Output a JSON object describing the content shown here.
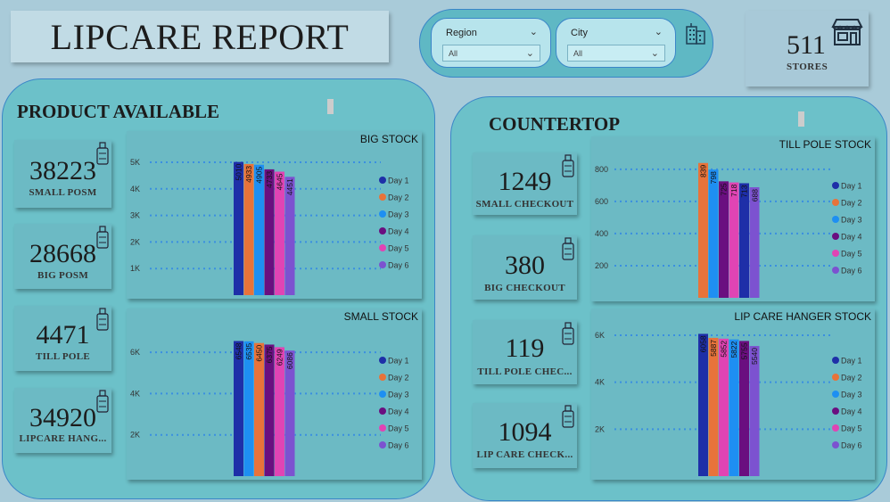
{
  "title": "LIPCARE REPORT",
  "filters": [
    {
      "label": "Region",
      "value": "All"
    },
    {
      "label": "City",
      "value": "All"
    }
  ],
  "stores": {
    "value": "511",
    "label": "STORES"
  },
  "product_available": {
    "title": "PRODUCT AVAILABLE",
    "cards": [
      {
        "value": "38223",
        "label": "SMALL POSM"
      },
      {
        "value": "28668",
        "label": "BIG POSM"
      },
      {
        "value": "4471",
        "label": "TILL POLE"
      },
      {
        "value": "34920",
        "label": "LIPCARE HANG..."
      }
    ]
  },
  "countertop": {
    "title": "COUNTERTOP",
    "cards": [
      {
        "value": "1249",
        "label": "SMALL CHECKOUT"
      },
      {
        "value": "380",
        "label": "BIG CHECKOUT"
      },
      {
        "value": "119",
        "label": "TILL POLE CHEC..."
      },
      {
        "value": "1094",
        "label": "LIP CARE CHECK..."
      }
    ]
  },
  "chart_data": [
    {
      "type": "bar",
      "title": "BIG STOCK",
      "categories": [
        "Day 1",
        "Day 2",
        "Day 3",
        "Day 4",
        "Day 5",
        "Day 6"
      ],
      "values": [
        5010,
        4933,
        4905,
        4733,
        4645,
        4451
      ],
      "labels": [
        "5010",
        "4933",
        "4905",
        "4733",
        "4645",
        "4451"
      ],
      "yticks": [
        1000,
        2000,
        3000,
        4000,
        5000
      ],
      "ytick_labels": [
        "1K",
        "2K",
        "3K",
        "4K",
        "5K"
      ],
      "ylim": [
        0,
        5300
      ],
      "colors": [
        "#1e2fa8",
        "#e8733a",
        "#1e8ff2",
        "#6a0f80",
        "#e044b4",
        "#7c52d0"
      ],
      "bar_colors": [
        "#1e2fa8",
        "#e8733a",
        "#1e8ff2",
        "#6a0f80",
        "#e044b4",
        "#7c52d0"
      ],
      "legend": [
        "Day 1",
        "Day 2",
        "Day 3",
        "Day 4",
        "Day 5",
        "Day 6"
      ]
    },
    {
      "type": "bar",
      "title": "SMALL STOCK",
      "categories": [
        "Day 1",
        "Day 2",
        "Day 3",
        "Day 4",
        "Day 5",
        "Day 6"
      ],
      "values": [
        6548,
        6535,
        6450,
        6375,
        6249,
        6086
      ],
      "labels": [
        "6548",
        "6535",
        "6450",
        "6375",
        "6249",
        "6086"
      ],
      "yticks": [
        2000,
        4000,
        6000
      ],
      "ytick_labels": [
        "2K",
        "4K",
        "6K"
      ],
      "ylim": [
        0,
        7000
      ],
      "colors": [
        "#1e2fa8",
        "#e8733a",
        "#1e8ff2",
        "#6a0f80",
        "#e044b4",
        "#7c52d0"
      ],
      "bar_colors": [
        "#1e2fa8",
        "#1e8ff2",
        "#e8733a",
        "#6a0f80",
        "#e044b4",
        "#7c52d0"
      ],
      "legend": [
        "Day 1",
        "Day 2",
        "Day 3",
        "Day 4",
        "Day 5",
        "Day 6"
      ]
    },
    {
      "type": "bar",
      "title": "TILL POLE STOCK",
      "categories": [
        "Day 1",
        "Day 2",
        "Day 3",
        "Day 4",
        "Day 5",
        "Day 6"
      ],
      "values": [
        839,
        798,
        725,
        718,
        713,
        688
      ],
      "labels": [
        "839",
        "798",
        "725",
        "718",
        "713",
        "688"
      ],
      "yticks": [
        200,
        400,
        600,
        800
      ],
      "ytick_labels": [
        "200",
        "400",
        "600",
        "800"
      ],
      "ylim": [
        0,
        860
      ],
      "colors": [
        "#1e2fa8",
        "#e8733a",
        "#1e8ff2",
        "#6a0f80",
        "#e044b4",
        "#7c52d0"
      ],
      "bar_colors": [
        "#e8733a",
        "#1e8ff2",
        "#6a0f80",
        "#e044b4",
        "#1e2fa8",
        "#7c52d0"
      ],
      "legend": [
        "Day 1",
        "Day 2",
        "Day 3",
        "Day 4",
        "Day 5",
        "Day 6"
      ]
    },
    {
      "type": "bar",
      "title": "LIP CARE HANGER STOCK",
      "categories": [
        "Day 1",
        "Day 2",
        "Day 3",
        "Day 4",
        "Day 5",
        "Day 6"
      ],
      "values": [
        6058,
        5887,
        5852,
        5822,
        5755,
        5540
      ],
      "labels": [
        "6058",
        "5887",
        "5852",
        "5822",
        "5755",
        "5540"
      ],
      "yticks": [
        2000,
        4000,
        6000
      ],
      "ytick_labels": [
        "2K",
        "4K",
        "6K"
      ],
      "ylim": [
        0,
        6150
      ],
      "colors": [
        "#1e2fa8",
        "#e8733a",
        "#1e8ff2",
        "#6a0f80",
        "#e044b4",
        "#7c52d0"
      ],
      "bar_colors": [
        "#1e2fa8",
        "#e8733a",
        "#e044b4",
        "#1e8ff2",
        "#6a0f80",
        "#7c52d0"
      ],
      "legend": [
        "Day 1",
        "Day 2",
        "Day 3",
        "Day 4",
        "Day 5",
        "Day 6"
      ]
    }
  ]
}
